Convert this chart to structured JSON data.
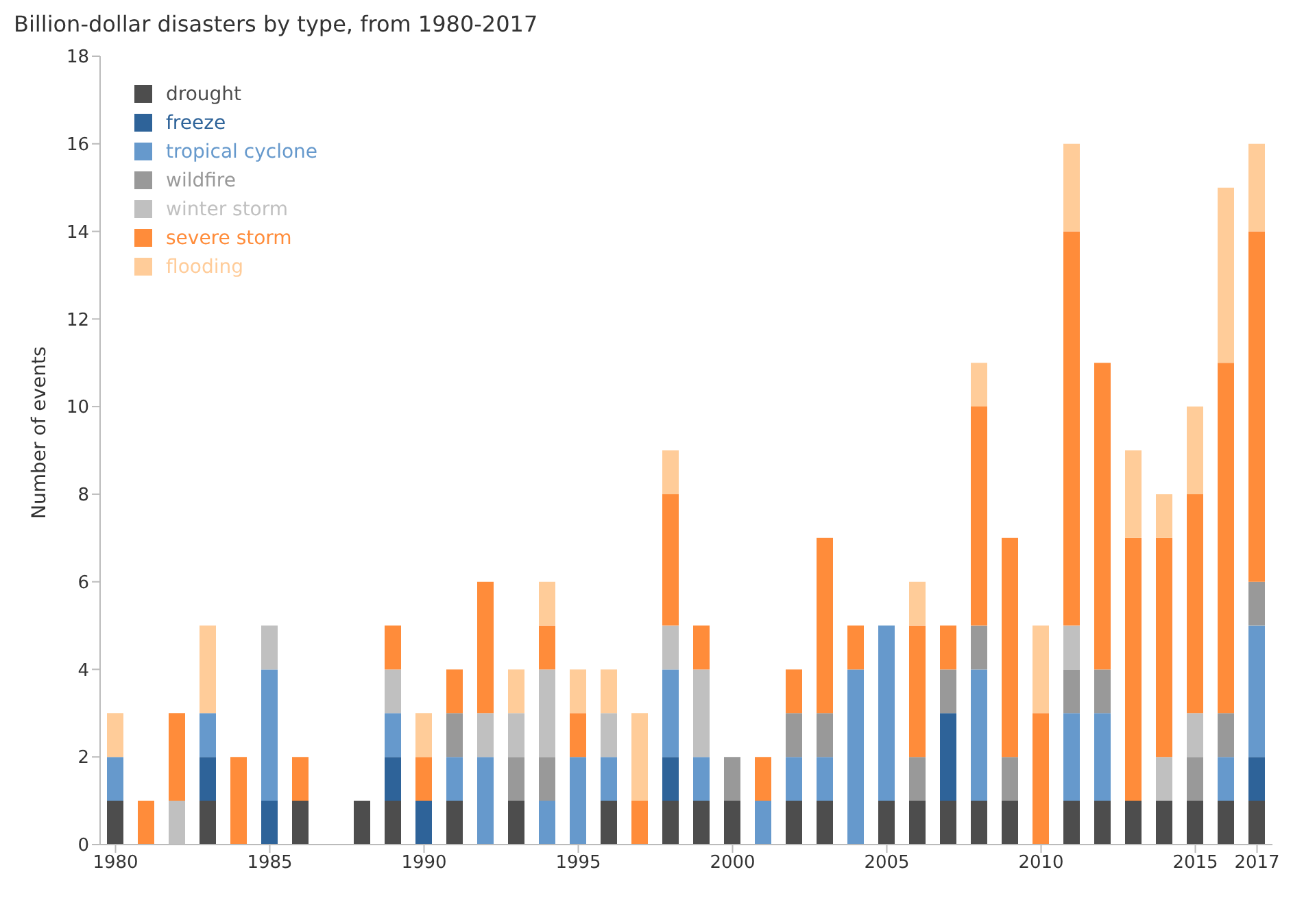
{
  "chart_data": {
    "type": "bar",
    "title": "Billion-dollar disasters by type, from 1980-2017",
    "ylabel": "Number of events",
    "stacked": true,
    "legend": "top left",
    "grid": false,
    "categories": [
      "1980",
      null,
      null,
      null,
      null,
      "1985",
      null,
      null,
      null,
      null,
      "1990",
      null,
      null,
      null,
      null,
      "1995",
      null,
      null,
      null,
      null,
      "2000",
      null,
      null,
      null,
      null,
      "2005",
      null,
      null,
      null,
      null,
      "2010",
      null,
      null,
      null,
      null,
      "2015",
      null,
      "2017"
    ],
    "ylim": [
      0,
      18
    ],
    "yticks": [
      0,
      2,
      4,
      6,
      8,
      10,
      12,
      14,
      16,
      18
    ],
    "series": [
      {
        "name": "drought",
        "color": "#4d4d4d",
        "values": [
          1,
          0,
          0,
          1,
          0,
          0,
          1,
          0,
          1,
          1,
          0,
          1,
          0,
          1,
          0,
          0,
          1,
          0,
          1,
          1,
          1,
          0,
          1,
          1,
          0,
          1,
          1,
          1,
          1,
          1,
          0,
          1,
          1,
          1,
          1,
          1,
          1,
          1
        ]
      },
      {
        "name": "freeze",
        "color": "#2e6399",
        "values": [
          0,
          0,
          0,
          1,
          0,
          1,
          0,
          0,
          0,
          1,
          1,
          0,
          0,
          0,
          0,
          0,
          0,
          0,
          1,
          0,
          0,
          0,
          0,
          0,
          0,
          0,
          0,
          2,
          0,
          0,
          0,
          0,
          0,
          0,
          0,
          0,
          0,
          1
        ]
      },
      {
        "name": "tropical cyclone",
        "color": "#6699cc",
        "values": [
          1,
          0,
          0,
          1,
          0,
          3,
          0,
          0,
          0,
          1,
          0,
          1,
          2,
          0,
          1,
          2,
          1,
          0,
          2,
          1,
          0,
          1,
          1,
          1,
          4,
          4,
          0,
          0,
          3,
          0,
          0,
          2,
          2,
          0,
          0,
          0,
          1,
          3
        ]
      },
      {
        "name": "wildfire",
        "color": "#999999",
        "values": [
          0,
          0,
          0,
          0,
          0,
          0,
          0,
          0,
          0,
          0,
          0,
          1,
          0,
          1,
          1,
          0,
          0,
          0,
          0,
          0,
          1,
          0,
          1,
          1,
          0,
          0,
          1,
          1,
          1,
          1,
          0,
          1,
          1,
          0,
          0,
          1,
          1,
          1
        ]
      },
      {
        "name": "winter storm",
        "color": "#c0c0c0",
        "values": [
          0,
          0,
          1,
          0,
          0,
          1,
          0,
          0,
          0,
          1,
          0,
          0,
          1,
          1,
          2,
          0,
          1,
          0,
          1,
          2,
          0,
          0,
          0,
          0,
          0,
          0,
          0,
          0,
          0,
          0,
          0,
          1,
          0,
          0,
          1,
          1,
          0,
          0
        ]
      },
      {
        "name": "severe storm",
        "color": "#ff8c3a",
        "values": [
          0,
          1,
          2,
          0,
          2,
          0,
          1,
          0,
          0,
          1,
          1,
          1,
          3,
          0,
          1,
          1,
          0,
          1,
          3,
          1,
          0,
          1,
          1,
          4,
          1,
          0,
          3,
          1,
          5,
          5,
          3,
          9,
          7,
          6,
          5,
          5,
          8,
          8
        ]
      },
      {
        "name": "flooding",
        "color": "#ffcc99",
        "values": [
          1,
          0,
          0,
          2,
          0,
          0,
          0,
          0,
          0,
          0,
          1,
          0,
          0,
          1,
          1,
          1,
          1,
          2,
          1,
          0,
          0,
          0,
          0,
          0,
          0,
          0,
          1,
          0,
          1,
          0,
          2,
          2,
          0,
          2,
          1,
          2,
          4,
          2
        ]
      }
    ]
  }
}
